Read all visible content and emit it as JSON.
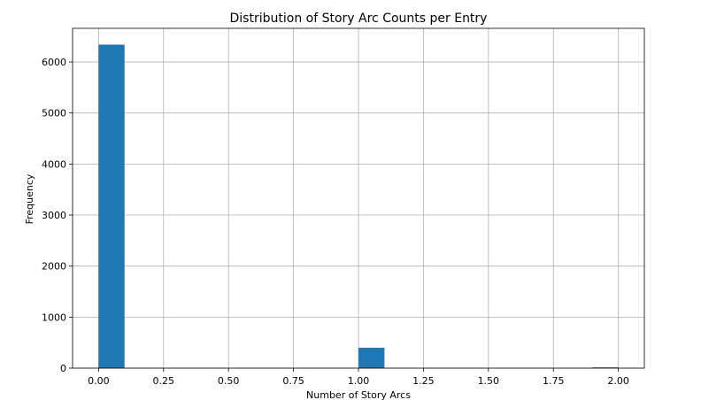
{
  "chart_data": {
    "type": "bar",
    "title": "Distribution of Story Arc Counts per Entry",
    "xlabel": "Number of Story Arcs",
    "ylabel": "Frequency",
    "xlim": [
      -0.1,
      2.1
    ],
    "ylim": [
      0,
      6660
    ],
    "bin_width": 0.1,
    "bins": [
      {
        "start": 0.0,
        "end": 0.1,
        "count": 6340
      },
      {
        "start": 1.0,
        "end": 1.1,
        "count": 400
      },
      {
        "start": 1.9,
        "end": 2.0,
        "count": 15
      }
    ],
    "xticks": [
      0.0,
      0.25,
      0.5,
      0.75,
      1.0,
      1.25,
      1.5,
      1.75,
      2.0
    ],
    "xtick_labels": [
      "0.00",
      "0.25",
      "0.50",
      "0.75",
      "1.00",
      "1.25",
      "1.50",
      "1.75",
      "2.00"
    ],
    "yticks": [
      0,
      1000,
      2000,
      3000,
      4000,
      5000,
      6000
    ],
    "ytick_labels": [
      "0",
      "1000",
      "2000",
      "3000",
      "4000",
      "5000",
      "6000"
    ],
    "grid": true,
    "bar_color": "#1f77b4"
  }
}
